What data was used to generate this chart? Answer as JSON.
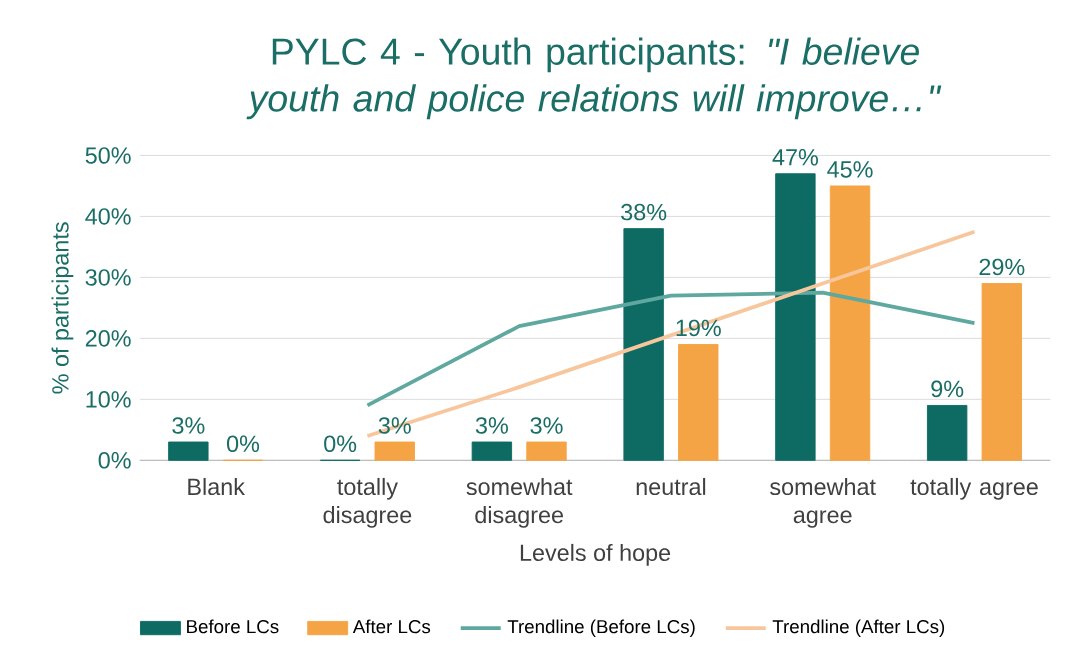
{
  "chart_data": {
    "type": "bar",
    "title": "PYLC 4 - Youth participants:  *\"I believe youth and police relations will improve…\"*",
    "xlabel": "Levels of hope",
    "ylabel": "% of participants",
    "categories": [
      "Blank",
      "totally disagree",
      "somewhat disagree",
      "neutral",
      "somewhat agree",
      "totally agree"
    ],
    "series": [
      {
        "name": "Before LCs",
        "color": "#0e6b63",
        "values": [
          3,
          0,
          3,
          38,
          47,
          9
        ],
        "value_labels": [
          "3%",
          "0%",
          "3%",
          "38%",
          "47%",
          "9%"
        ]
      },
      {
        "name": "After LCs",
        "color": "#f5a445",
        "values": [
          0,
          3,
          3,
          19,
          45,
          29
        ],
        "value_labels": [
          "0%",
          "3%",
          "3%",
          "19%",
          "45%",
          "29%"
        ]
      },
      {
        "name": "Trendline (Before LCs)",
        "type": "line",
        "color": "#5fa8a0",
        "values": [
          null,
          9,
          22,
          27,
          27.5,
          22.5
        ]
      },
      {
        "name": "Trendline (After LCs)",
        "type": "line",
        "color": "#f8c69c",
        "values": [
          null,
          4,
          12,
          20.5,
          29,
          37.5
        ]
      }
    ],
    "ylim": [
      0,
      50
    ],
    "yticks": [
      {
        "value": 0,
        "label": "0%"
      },
      {
        "value": 10,
        "label": "10%"
      },
      {
        "value": 20,
        "label": "20%"
      },
      {
        "value": 30,
        "label": "30%"
      },
      {
        "value": 40,
        "label": "40%"
      },
      {
        "value": 50,
        "label": "50%"
      }
    ],
    "grid": "y",
    "legend": "bottom"
  }
}
